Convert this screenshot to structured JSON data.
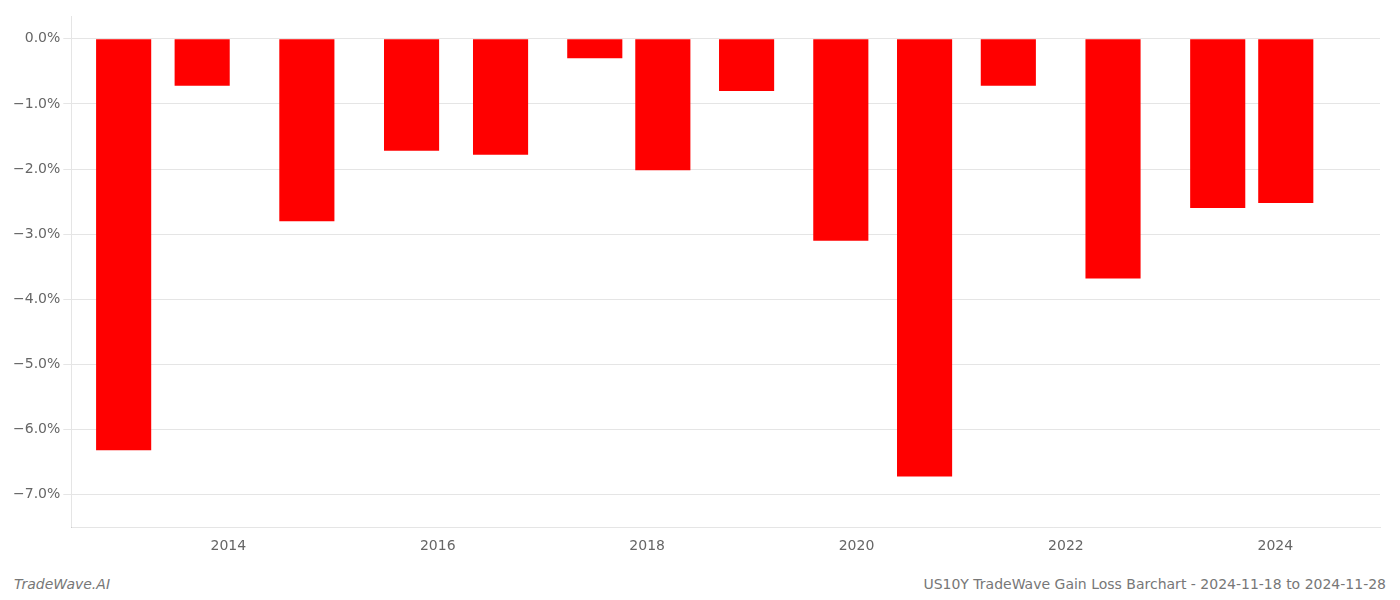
{
  "chart_data": {
    "type": "bar",
    "x": [
      2013,
      2013.75,
      2014.75,
      2015.75,
      2016.6,
      2017.5,
      2018.15,
      2018.95,
      2019.85,
      2020.65,
      2021.45,
      2022.45,
      2023.45,
      2024.1
    ],
    "values": [
      -6.32,
      -0.72,
      -2.8,
      -1.72,
      -1.78,
      -0.3,
      -2.02,
      -0.8,
      -3.1,
      -6.72,
      -0.72,
      -3.68,
      -2.6,
      -2.52
    ],
    "color": "#ff0000",
    "xlim": [
      2012.5,
      2025.0
    ],
    "xticks": [
      2014,
      2016,
      2018,
      2020,
      2022,
      2024
    ],
    "ylim": [
      -7.5,
      0.35
    ],
    "yticks": [
      {
        "value": 0.0,
        "label": "0.0%"
      },
      {
        "value": -1.0,
        "label": "−1.0%"
      },
      {
        "value": -2.0,
        "label": "−2.0%"
      },
      {
        "value": -3.0,
        "label": "−3.0%"
      },
      {
        "value": -4.0,
        "label": "−4.0%"
      },
      {
        "value": -5.0,
        "label": "−5.0%"
      },
      {
        "value": -6.0,
        "label": "−6.0%"
      },
      {
        "value": -7.0,
        "label": "−7.0%"
      }
    ],
    "grid": "y",
    "annotations": [
      "TradeWave.AI",
      "US10Y TradeWave Gain Loss Barchart - 2024-11-18 to 2024-11-28"
    ]
  }
}
